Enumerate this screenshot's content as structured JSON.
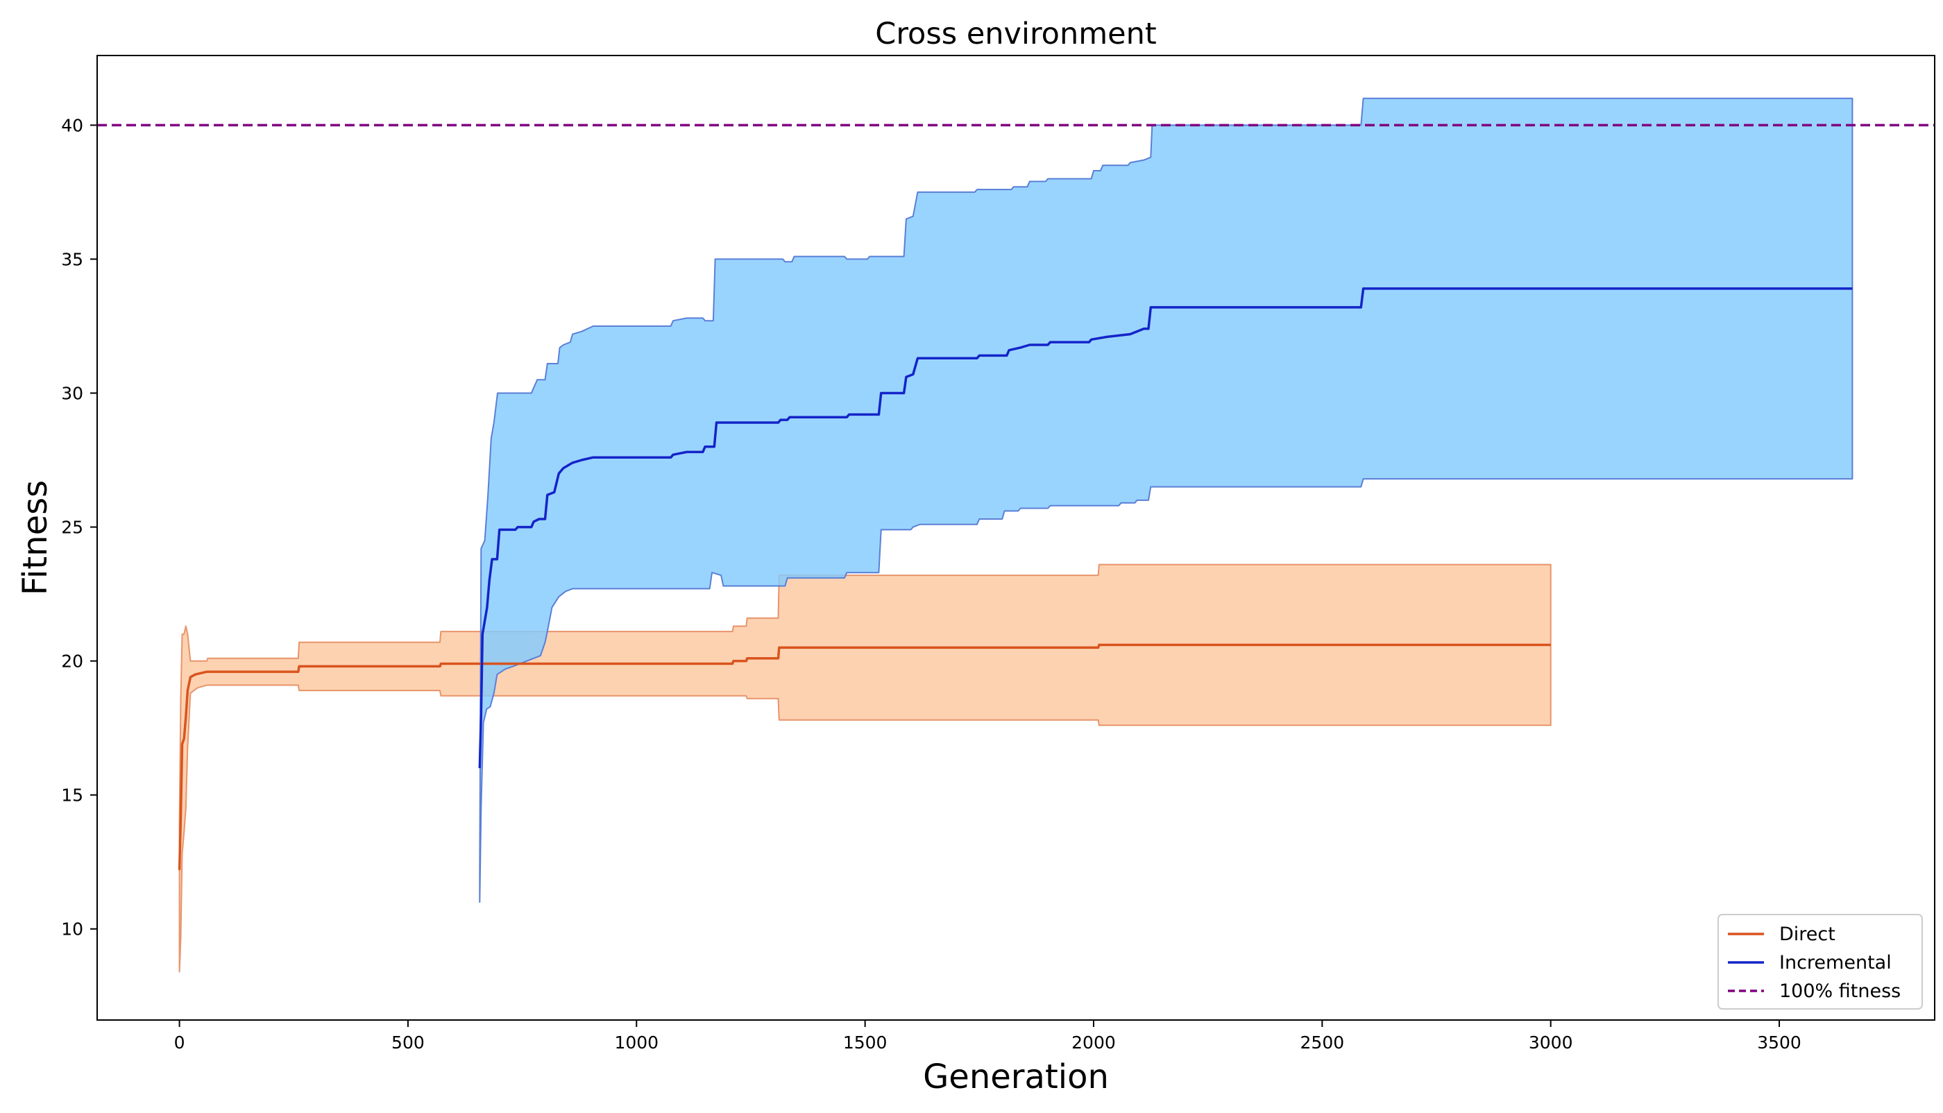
{
  "chart_data": {
    "type": "line",
    "title": "Cross environment",
    "xlabel": "Generation",
    "ylabel": "Fitness",
    "xlim": [
      -180,
      3840
    ],
    "ylim": [
      6.6,
      42.6
    ],
    "xticks": [
      0,
      500,
      1000,
      1500,
      2000,
      2500,
      3000,
      3500
    ],
    "yticks": [
      10,
      15,
      20,
      25,
      30,
      35,
      40
    ],
    "grid": false,
    "legend": {
      "placement": "lower right",
      "entries": [
        "Direct",
        "Incremental",
        "100% fitness"
      ]
    },
    "reference_line": {
      "name": "100% fitness",
      "y": 40,
      "color": "#800080",
      "style": "dashed"
    },
    "series": [
      {
        "name": "Direct",
        "color": "#d9541e",
        "band_color": "#fdc8a0",
        "band_edge_color": "#e8946a",
        "mean": [
          [
            0,
            12.2
          ],
          [
            3,
            14.2
          ],
          [
            6,
            16.9
          ],
          [
            10,
            17.1
          ],
          [
            14,
            17.9
          ],
          [
            18,
            18.9
          ],
          [
            24,
            19.4
          ],
          [
            35,
            19.5
          ],
          [
            60,
            19.6
          ],
          [
            260,
            19.6
          ],
          [
            262,
            19.8
          ],
          [
            570,
            19.8
          ],
          [
            572,
            19.9
          ],
          [
            1210,
            19.9
          ],
          [
            1212,
            20.0
          ],
          [
            1240,
            20.0
          ],
          [
            1242,
            20.1
          ],
          [
            1310,
            20.1
          ],
          [
            1312,
            20.5
          ],
          [
            2010,
            20.5
          ],
          [
            2012,
            20.6
          ],
          [
            3000,
            20.6
          ]
        ],
        "upper": [
          [
            0,
            14.0
          ],
          [
            3,
            18.6
          ],
          [
            6,
            21.0
          ],
          [
            10,
            21.0
          ],
          [
            14,
            21.3
          ],
          [
            18,
            21.0
          ],
          [
            24,
            20.0
          ],
          [
            60,
            20.0
          ],
          [
            62,
            20.1
          ],
          [
            260,
            20.1
          ],
          [
            262,
            20.7
          ],
          [
            570,
            20.7
          ],
          [
            572,
            21.1
          ],
          [
            1210,
            21.1
          ],
          [
            1212,
            21.3
          ],
          [
            1240,
            21.3
          ],
          [
            1242,
            21.6
          ],
          [
            1310,
            21.6
          ],
          [
            1312,
            23.2
          ],
          [
            2010,
            23.2
          ],
          [
            2012,
            23.6
          ],
          [
            3000,
            23.6
          ]
        ],
        "lower": [
          [
            0,
            8.4
          ],
          [
            3,
            9.7
          ],
          [
            6,
            12.8
          ],
          [
            10,
            13.6
          ],
          [
            14,
            14.5
          ],
          [
            18,
            16.8
          ],
          [
            24,
            18.8
          ],
          [
            40,
            19.0
          ],
          [
            60,
            19.1
          ],
          [
            260,
            19.1
          ],
          [
            262,
            18.9
          ],
          [
            570,
            18.9
          ],
          [
            572,
            18.7
          ],
          [
            1240,
            18.7
          ],
          [
            1242,
            18.6
          ],
          [
            1310,
            18.6
          ],
          [
            1312,
            17.8
          ],
          [
            2010,
            17.8
          ],
          [
            2012,
            17.6
          ],
          [
            3000,
            17.6
          ]
        ]
      },
      {
        "name": "Incremental",
        "color": "#1424c8",
        "band_color": "#83caff",
        "band_edge_color": "#5a7fd6",
        "mean": [
          [
            657,
            16.0
          ],
          [
            660,
            18.0
          ],
          [
            663,
            21.0
          ],
          [
            668,
            21.5
          ],
          [
            673,
            22.0
          ],
          [
            678,
            23.0
          ],
          [
            684,
            23.8
          ],
          [
            695,
            23.8
          ],
          [
            700,
            24.9
          ],
          [
            735,
            24.9
          ],
          [
            740,
            25.0
          ],
          [
            770,
            25.0
          ],
          [
            775,
            25.2
          ],
          [
            787,
            25.3
          ],
          [
            800,
            25.3
          ],
          [
            805,
            26.2
          ],
          [
            820,
            26.3
          ],
          [
            830,
            27.0
          ],
          [
            840,
            27.2
          ],
          [
            850,
            27.3
          ],
          [
            860,
            27.4
          ],
          [
            880,
            27.5
          ],
          [
            905,
            27.6
          ],
          [
            1075,
            27.6
          ],
          [
            1080,
            27.7
          ],
          [
            1110,
            27.8
          ],
          [
            1145,
            27.8
          ],
          [
            1150,
            28.0
          ],
          [
            1170,
            28.0
          ],
          [
            1175,
            28.9
          ],
          [
            1310,
            28.9
          ],
          [
            1315,
            29.0
          ],
          [
            1330,
            29.0
          ],
          [
            1335,
            29.1
          ],
          [
            1460,
            29.1
          ],
          [
            1465,
            29.2
          ],
          [
            1530,
            29.2
          ],
          [
            1535,
            30.0
          ],
          [
            1585,
            30.0
          ],
          [
            1590,
            30.6
          ],
          [
            1605,
            30.7
          ],
          [
            1615,
            31.3
          ],
          [
            1745,
            31.3
          ],
          [
            1750,
            31.4
          ],
          [
            1810,
            31.4
          ],
          [
            1815,
            31.6
          ],
          [
            1840,
            31.7
          ],
          [
            1860,
            31.8
          ],
          [
            1900,
            31.8
          ],
          [
            1905,
            31.9
          ],
          [
            1990,
            31.9
          ],
          [
            1995,
            32.0
          ],
          [
            2030,
            32.1
          ],
          [
            2080,
            32.2
          ],
          [
            2110,
            32.4
          ],
          [
            2120,
            32.4
          ],
          [
            2125,
            33.2
          ],
          [
            2585,
            33.2
          ],
          [
            2590,
            33.9
          ],
          [
            3660,
            33.9
          ]
        ],
        "upper": [
          [
            657,
            12.0
          ],
          [
            660,
            24.2
          ],
          [
            668,
            24.5
          ],
          [
            675,
            26.2
          ],
          [
            682,
            28.3
          ],
          [
            688,
            28.9
          ],
          [
            696,
            30.0
          ],
          [
            770,
            30.0
          ],
          [
            775,
            30.2
          ],
          [
            783,
            30.5
          ],
          [
            800,
            30.5
          ],
          [
            805,
            31.1
          ],
          [
            828,
            31.1
          ],
          [
            832,
            31.7
          ],
          [
            840,
            31.8
          ],
          [
            855,
            31.9
          ],
          [
            860,
            32.2
          ],
          [
            880,
            32.3
          ],
          [
            905,
            32.5
          ],
          [
            1075,
            32.5
          ],
          [
            1080,
            32.7
          ],
          [
            1110,
            32.8
          ],
          [
            1145,
            32.8
          ],
          [
            1150,
            32.7
          ],
          [
            1168,
            32.7
          ],
          [
            1172,
            35.0
          ],
          [
            1320,
            35.0
          ],
          [
            1325,
            34.9
          ],
          [
            1340,
            34.9
          ],
          [
            1345,
            35.1
          ],
          [
            1455,
            35.1
          ],
          [
            1460,
            35.0
          ],
          [
            1505,
            35.0
          ],
          [
            1510,
            35.1
          ],
          [
            1585,
            35.1
          ],
          [
            1590,
            36.5
          ],
          [
            1605,
            36.6
          ],
          [
            1615,
            37.5
          ],
          [
            1740,
            37.5
          ],
          [
            1745,
            37.6
          ],
          [
            1820,
            37.6
          ],
          [
            1825,
            37.7
          ],
          [
            1855,
            37.7
          ],
          [
            1860,
            37.9
          ],
          [
            1895,
            37.9
          ],
          [
            1900,
            38.0
          ],
          [
            1995,
            38.0
          ],
          [
            2000,
            38.3
          ],
          [
            2015,
            38.3
          ],
          [
            2020,
            38.5
          ],
          [
            2075,
            38.5
          ],
          [
            2080,
            38.6
          ],
          [
            2110,
            38.7
          ],
          [
            2125,
            38.8
          ],
          [
            2128,
            40.0
          ],
          [
            2585,
            40.0
          ],
          [
            2590,
            41.0
          ],
          [
            3660,
            41.0
          ]
        ],
        "lower": [
          [
            657,
            11.0
          ],
          [
            660,
            14.5
          ],
          [
            665,
            17.7
          ],
          [
            672,
            18.2
          ],
          [
            680,
            18.3
          ],
          [
            688,
            18.8
          ],
          [
            695,
            19.5
          ],
          [
            713,
            19.7
          ],
          [
            730,
            19.8
          ],
          [
            760,
            20.0
          ],
          [
            775,
            20.1
          ],
          [
            790,
            20.2
          ],
          [
            800,
            20.7
          ],
          [
            805,
            21.1
          ],
          [
            815,
            22.0
          ],
          [
            830,
            22.4
          ],
          [
            845,
            22.6
          ],
          [
            860,
            22.7
          ],
          [
            1160,
            22.7
          ],
          [
            1165,
            23.3
          ],
          [
            1185,
            23.2
          ],
          [
            1190,
            22.8
          ],
          [
            1325,
            22.8
          ],
          [
            1330,
            23.1
          ],
          [
            1455,
            23.1
          ],
          [
            1460,
            23.3
          ],
          [
            1530,
            23.3
          ],
          [
            1535,
            24.9
          ],
          [
            1600,
            24.9
          ],
          [
            1605,
            25.0
          ],
          [
            1620,
            25.1
          ],
          [
            1745,
            25.1
          ],
          [
            1750,
            25.3
          ],
          [
            1800,
            25.3
          ],
          [
            1805,
            25.6
          ],
          [
            1835,
            25.6
          ],
          [
            1840,
            25.7
          ],
          [
            1900,
            25.7
          ],
          [
            1905,
            25.8
          ],
          [
            2055,
            25.8
          ],
          [
            2060,
            25.9
          ],
          [
            2090,
            25.9
          ],
          [
            2095,
            26.0
          ],
          [
            2120,
            26.0
          ],
          [
            2125,
            26.5
          ],
          [
            2585,
            26.5
          ],
          [
            2590,
            26.8
          ],
          [
            3660,
            26.8
          ]
        ]
      }
    ]
  }
}
